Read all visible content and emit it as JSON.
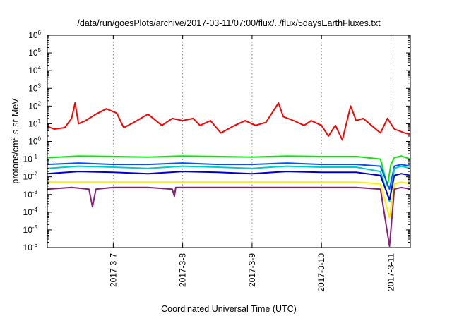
{
  "chart_data": {
    "type": "line",
    "title": "/data/run/goesPlots/archive/2017-03-11/07:00/flux/../flux/5daysEarthFluxes.txt",
    "xlabel": "Coordinated Universal Time (UTC)",
    "ylabel": {
      "pre": "protons/cm",
      "sup": "2",
      "post": "-s-sr-MeV"
    },
    "y_scale": "log",
    "ylim": [
      1e-06,
      1000000.0
    ],
    "y_ticks": [
      {
        "base": "10",
        "exp": "-6"
      },
      {
        "base": "10",
        "exp": "-5"
      },
      {
        "base": "10",
        "exp": "-4"
      },
      {
        "base": "10",
        "exp": "-3"
      },
      {
        "base": "10",
        "exp": "-2"
      },
      {
        "base": "10",
        "exp": "-1"
      },
      {
        "base": "10",
        "exp": "0"
      },
      {
        "base": "10",
        "exp": "1"
      },
      {
        "base": "10",
        "exp": "2"
      },
      {
        "base": "10",
        "exp": "3"
      },
      {
        "base": "10",
        "exp": "4"
      },
      {
        "base": "10",
        "exp": "5"
      },
      {
        "base": "10",
        "exp": "6"
      }
    ],
    "x_ticks": [
      "2017-3-7",
      "2017-3-8",
      "2017-3-9",
      "2017-3-10",
      "2017-3-11"
    ],
    "xlim_days": [
      6.05,
      11.28
    ],
    "grid": "dotted vertical lines at date ticks",
    "legend": "none",
    "series": [
      {
        "color": "#ff0000",
        "x": [
          6.05,
          6.15,
          6.3,
          6.4,
          6.45,
          6.5,
          6.6,
          6.75,
          6.9,
          7.05,
          7.15,
          7.3,
          7.5,
          7.7,
          7.85,
          8.0,
          8.15,
          8.25,
          8.4,
          8.55,
          8.75,
          8.9,
          9.05,
          9.2,
          9.38,
          9.45,
          9.6,
          9.75,
          9.85,
          10.0,
          10.1,
          10.2,
          10.3,
          10.42,
          10.5,
          10.6,
          10.72,
          10.85,
          10.95,
          11.05,
          11.2,
          11.28
        ],
        "y": [
          7,
          5,
          6,
          20,
          150,
          10,
          15,
          35,
          70,
          40,
          6,
          12,
          35,
          8,
          20,
          15,
          20,
          8,
          15,
          3,
          8,
          15,
          8,
          12,
          150,
          25,
          15,
          8,
          15,
          8,
          2,
          8,
          1.2,
          100,
          15,
          20,
          8,
          3,
          20,
          5,
          3,
          2.5
        ]
      },
      {
        "color": "#00ee00",
        "x": [
          6.05,
          6.5,
          7.0,
          7.5,
          8.0,
          8.5,
          9.0,
          9.5,
          10.0,
          10.5,
          10.85,
          10.95,
          11.0,
          11.05,
          11.15,
          11.28
        ],
        "y": [
          0.12,
          0.15,
          0.14,
          0.13,
          0.15,
          0.14,
          0.13,
          0.15,
          0.14,
          0.14,
          0.1,
          0.003,
          0.05,
          0.12,
          0.15,
          0.1
        ]
      },
      {
        "color": "#00cccc",
        "x": [
          6.05,
          6.5,
          7.0,
          7.5,
          8.0,
          8.5,
          9.0,
          9.5,
          10.0,
          10.5,
          10.85,
          10.98,
          11.05,
          11.15,
          11.28
        ],
        "y": [
          0.03,
          0.04,
          0.035,
          0.03,
          0.04,
          0.035,
          0.03,
          0.04,
          0.035,
          0.035,
          0.02,
          0.0004,
          0.03,
          0.04,
          0.03
        ]
      },
      {
        "color": "#0055ff",
        "x": [
          6.05,
          6.5,
          7.0,
          7.5,
          8.0,
          8.5,
          9.0,
          9.5,
          10.0,
          10.5,
          10.85,
          10.98,
          11.05,
          11.15,
          11.28
        ],
        "y": [
          0.05,
          0.06,
          0.05,
          0.05,
          0.06,
          0.05,
          0.05,
          0.06,
          0.05,
          0.05,
          0.04,
          0.002,
          0.04,
          0.05,
          0.04
        ]
      },
      {
        "color": "#0000cc",
        "x": [
          6.05,
          6.5,
          7.0,
          7.5,
          8.0,
          8.5,
          9.0,
          9.5,
          10.0,
          10.5,
          10.85,
          10.98,
          11.05,
          11.15,
          11.28
        ],
        "y": [
          0.015,
          0.02,
          0.018,
          0.015,
          0.02,
          0.018,
          0.015,
          0.02,
          0.018,
          0.018,
          0.012,
          0.0005,
          0.012,
          0.015,
          0.012
        ]
      },
      {
        "color": "#ffee00",
        "x": [
          6.05,
          6.5,
          7.0,
          7.5,
          8.0,
          8.5,
          9.0,
          9.5,
          10.0,
          10.5,
          10.85,
          10.98,
          11.05,
          11.15,
          11.28
        ],
        "y": [
          0.005,
          0.005,
          0.005,
          0.005,
          0.005,
          0.005,
          0.005,
          0.005,
          0.005,
          0.005,
          0.004,
          5e-05,
          0.004,
          0.005,
          0.004
        ]
      },
      {
        "color": "#88207a",
        "x": [
          6.05,
          6.4,
          6.65,
          6.7,
          6.75,
          7.0,
          7.5,
          7.85,
          7.88,
          7.9,
          8.5,
          9.0,
          9.5,
          10.0,
          10.5,
          10.85,
          10.98,
          11.05,
          11.15,
          11.28
        ],
        "y": [
          0.002,
          0.0025,
          0.002,
          0.0002,
          0.002,
          0.0025,
          0.0025,
          0.002,
          0.0008,
          0.0025,
          0.0025,
          0.0025,
          0.0025,
          0.0025,
          0.0025,
          0.002,
          1.2e-06,
          0.002,
          0.0025,
          0.002
        ]
      }
    ]
  }
}
